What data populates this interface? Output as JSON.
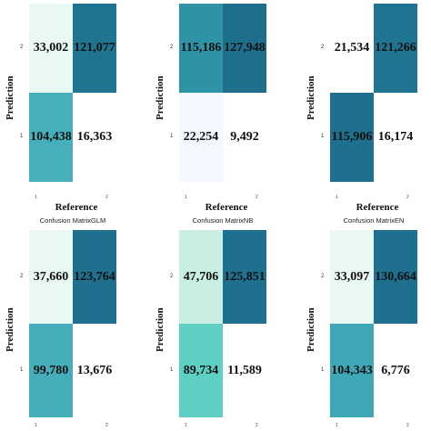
{
  "chart_data": [
    {
      "type": "heatmap",
      "xlabel": "Reference",
      "ylabel": "Prediction",
      "row_labels": [
        "2",
        "1"
      ],
      "col_labels": [
        "1",
        "2"
      ],
      "values": [
        [
          "33,002",
          "121,077"
        ],
        [
          "104,438",
          "16,363"
        ]
      ],
      "colors": [
        [
          "#eaf8f3",
          "#1f7590"
        ],
        [
          "#47afbb",
          "#ffffff"
        ]
      ]
    },
    {
      "type": "heatmap",
      "xlabel": "Reference",
      "ylabel": "Prediction",
      "row_labels": [
        "2",
        "1"
      ],
      "col_labels": [
        "1",
        "2"
      ],
      "values": [
        [
          "115,186",
          "127,948"
        ],
        [
          "22,254",
          "9,492"
        ]
      ],
      "colors": [
        [
          "#2f93a6",
          "#1e6f8c"
        ],
        [
          "#f3f8fe",
          "#ffffff"
        ]
      ]
    },
    {
      "type": "heatmap",
      "xlabel": "Reference",
      "ylabel": "Prediction",
      "row_labels": [
        "2",
        "1"
      ],
      "col_labels": [
        "1",
        "2"
      ],
      "values": [
        [
          "21,534",
          "121,266"
        ],
        [
          "115,906",
          "16,174"
        ]
      ],
      "colors": [
        [
          "#ffffff",
          "#1e7491"
        ],
        [
          "#1f6f8e",
          "#ffffff"
        ]
      ]
    },
    {
      "type": "heatmap",
      "title": "Confusion MatrixGLM",
      "xlabel": "Reference",
      "ylabel": "Prediction",
      "row_labels": [
        "2",
        "1"
      ],
      "col_labels": [
        "1",
        "2"
      ],
      "values": [
        [
          "37,660",
          "123,764"
        ],
        [
          "99,780",
          "13,676"
        ]
      ],
      "colors": [
        [
          "#e9f8f3",
          "#1f6f8e"
        ],
        [
          "#45aeba",
          "#ffffff"
        ]
      ]
    },
    {
      "type": "heatmap",
      "title": "Confusion MatrixNB",
      "xlabel": "Reference",
      "ylabel": "Prediction",
      "row_labels": [
        "2",
        "1"
      ],
      "col_labels": [
        "1",
        "2"
      ],
      "values": [
        [
          "47,706",
          "125,851"
        ],
        [
          "89,734",
          "11,589"
        ]
      ],
      "colors": [
        [
          "#c9efe5",
          "#1f6f8e"
        ],
        [
          "#5dcfc3",
          "#ffffff"
        ]
      ]
    },
    {
      "type": "heatmap",
      "title": "Confusion MatrixEN",
      "xlabel": "Reference",
      "ylabel": "Prediction",
      "row_labels": [
        "2",
        "1"
      ],
      "col_labels": [
        "1",
        "2"
      ],
      "values": [
        [
          "33,097",
          "130,664"
        ],
        [
          "104,343",
          "6,776"
        ]
      ],
      "colors": [
        [
          "#eaf8f3",
          "#1f6f8e"
        ],
        [
          "#3fa8b6",
          "#ffffff"
        ]
      ]
    }
  ]
}
